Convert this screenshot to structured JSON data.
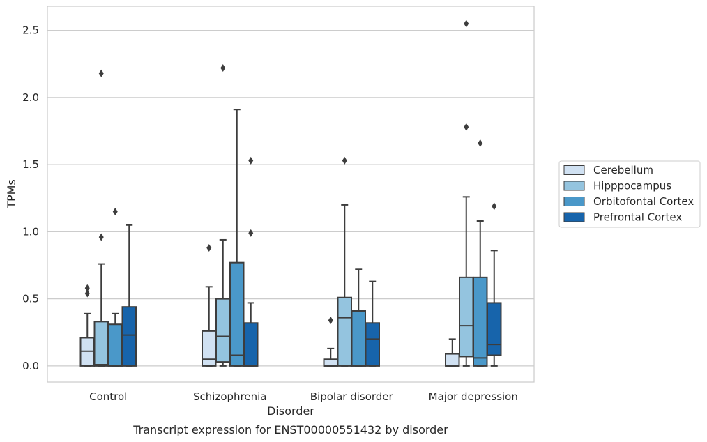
{
  "chart_data": {
    "type": "boxplot",
    "xlabel": "Disorder",
    "ylabel": "TPMs",
    "caption": "Transcript expression for ENST00000551432 by disorder",
    "ylim": [
      -0.12,
      2.68
    ],
    "yticks": [
      0.0,
      0.5,
      1.0,
      1.5,
      2.0,
      2.5
    ],
    "ytick_labels": [
      "0.0",
      "0.5",
      "1.0",
      "1.5",
      "2.0",
      "2.5"
    ],
    "grid": "horizontal",
    "legend_position": "right",
    "categories": [
      "Control",
      "Schizophrenia",
      "Bipolar disorder",
      "Major depression"
    ],
    "series": [
      {
        "name": "Cerebellum",
        "color": "#d0e1f2",
        "boxes": [
          {
            "whislo": 0.0,
            "q1": 0.0,
            "med": 0.11,
            "q3": 0.21,
            "whishi": 0.39,
            "fliers": [
              0.54,
              0.58
            ]
          },
          {
            "whislo": 0.0,
            "q1": 0.0,
            "med": 0.05,
            "q3": 0.26,
            "whishi": 0.59,
            "fliers": [
              0.88
            ]
          },
          {
            "whislo": 0.0,
            "q1": 0.0,
            "med": 0.0,
            "q3": 0.05,
            "whishi": 0.13,
            "fliers": [
              0.34
            ]
          },
          {
            "whislo": 0.0,
            "q1": 0.0,
            "med": 0.0,
            "q3": 0.09,
            "whishi": 0.2,
            "fliers": []
          }
        ]
      },
      {
        "name": "Hipppocampus",
        "color": "#94c4df",
        "boxes": [
          {
            "whislo": 0.0,
            "q1": 0.0,
            "med": 0.01,
            "q3": 0.33,
            "whishi": 0.76,
            "fliers": [
              0.96,
              2.18
            ]
          },
          {
            "whislo": 0.0,
            "q1": 0.03,
            "med": 0.22,
            "q3": 0.5,
            "whishi": 0.94,
            "fliers": [
              2.22
            ]
          },
          {
            "whislo": 0.0,
            "q1": 0.0,
            "med": 0.36,
            "q3": 0.51,
            "whishi": 1.2,
            "fliers": [
              1.53
            ]
          },
          {
            "whislo": 0.0,
            "q1": 0.07,
            "med": 0.3,
            "q3": 0.66,
            "whishi": 1.26,
            "fliers": [
              1.78,
              2.55
            ]
          }
        ]
      },
      {
        "name": "Orbitofontal Cortex",
        "color": "#4a98c9",
        "boxes": [
          {
            "whislo": 0.0,
            "q1": 0.0,
            "med": 0.0,
            "q3": 0.31,
            "whishi": 0.39,
            "fliers": [
              1.15
            ]
          },
          {
            "whislo": 0.0,
            "q1": 0.0,
            "med": 0.08,
            "q3": 0.77,
            "whishi": 1.91,
            "fliers": []
          },
          {
            "whislo": 0.0,
            "q1": 0.0,
            "med": 0.0,
            "q3": 0.41,
            "whishi": 0.72,
            "fliers": []
          },
          {
            "whislo": 0.0,
            "q1": 0.0,
            "med": 0.06,
            "q3": 0.66,
            "whishi": 1.08,
            "fliers": [
              1.66
            ]
          }
        ]
      },
      {
        "name": "Prefrontal Cortex",
        "color": "#1764ab",
        "boxes": [
          {
            "whislo": 0.0,
            "q1": 0.0,
            "med": 0.23,
            "q3": 0.44,
            "whishi": 1.05,
            "fliers": []
          },
          {
            "whislo": 0.0,
            "q1": 0.0,
            "med": 0.0,
            "q3": 0.32,
            "whishi": 0.47,
            "fliers": [
              0.99,
              1.53
            ]
          },
          {
            "whislo": 0.0,
            "q1": 0.0,
            "med": 0.2,
            "q3": 0.32,
            "whishi": 0.63,
            "fliers": []
          },
          {
            "whislo": 0.0,
            "q1": 0.08,
            "med": 0.16,
            "q3": 0.47,
            "whishi": 0.86,
            "fliers": [
              1.19
            ]
          }
        ]
      }
    ]
  }
}
